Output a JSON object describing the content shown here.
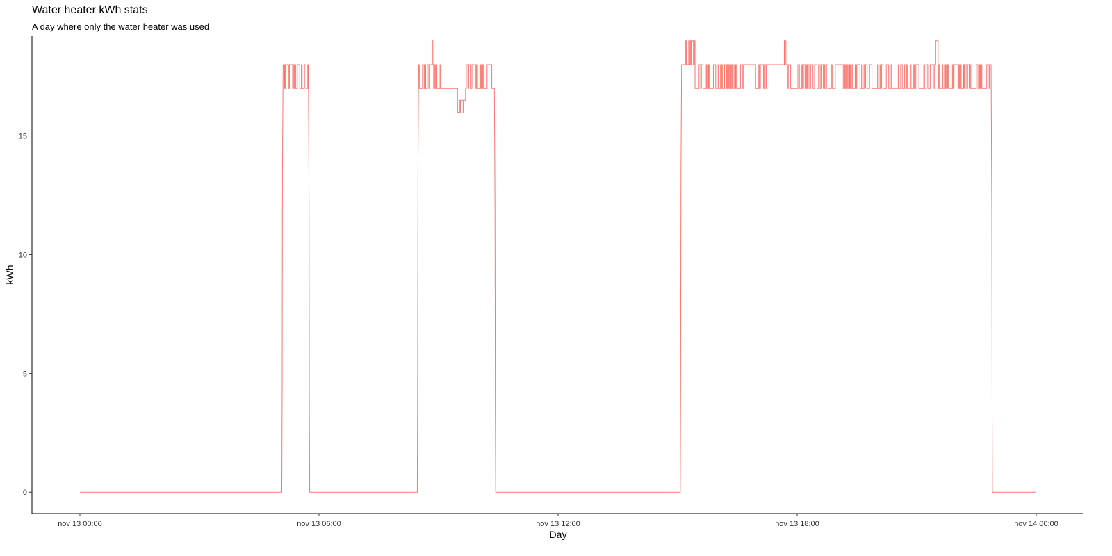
{
  "chart_data": {
    "type": "line",
    "title": "Water heater kWh stats",
    "subtitle": "A day where only the water heater was used",
    "xlabel": "Day",
    "ylabel": "kWh",
    "x_unit": "time",
    "xlim": [
      "nov 13 00:00",
      "nov 14 00:00"
    ],
    "ylim": [
      -0.9,
      19.2
    ],
    "x_ticks": [
      "nov 13 00:00",
      "nov 13 06:00",
      "nov 13 12:00",
      "nov 13 18:00",
      "nov 14 00:00"
    ],
    "y_ticks": [
      0,
      5,
      10,
      15
    ],
    "grid": false,
    "legend": "none",
    "line_color": "#F8766D",
    "segments": [
      {
        "start": "nov 13 00:00",
        "end": "nov 13 05:04",
        "level": 0
      },
      {
        "start": "nov 13 05:04",
        "end": "nov 13 05:46",
        "level": 18,
        "low": 17,
        "high": 18
      },
      {
        "start": "nov 13 05:46",
        "end": "nov 13 08:28",
        "level": 0
      },
      {
        "start": "nov 13 08:28",
        "end": "nov 13 10:26",
        "level": 17,
        "low": 17,
        "high": 18,
        "peak": 19,
        "dip": 16
      },
      {
        "start": "nov 13 10:26",
        "end": "nov 13 15:04",
        "level": 0
      },
      {
        "start": "nov 13 15:04",
        "end": "nov 13 22:54",
        "level": 18,
        "low": 17,
        "high": 18,
        "peak": 19
      },
      {
        "start": "nov 13 22:54",
        "end": "nov 13 23:59",
        "level": 0
      }
    ]
  }
}
